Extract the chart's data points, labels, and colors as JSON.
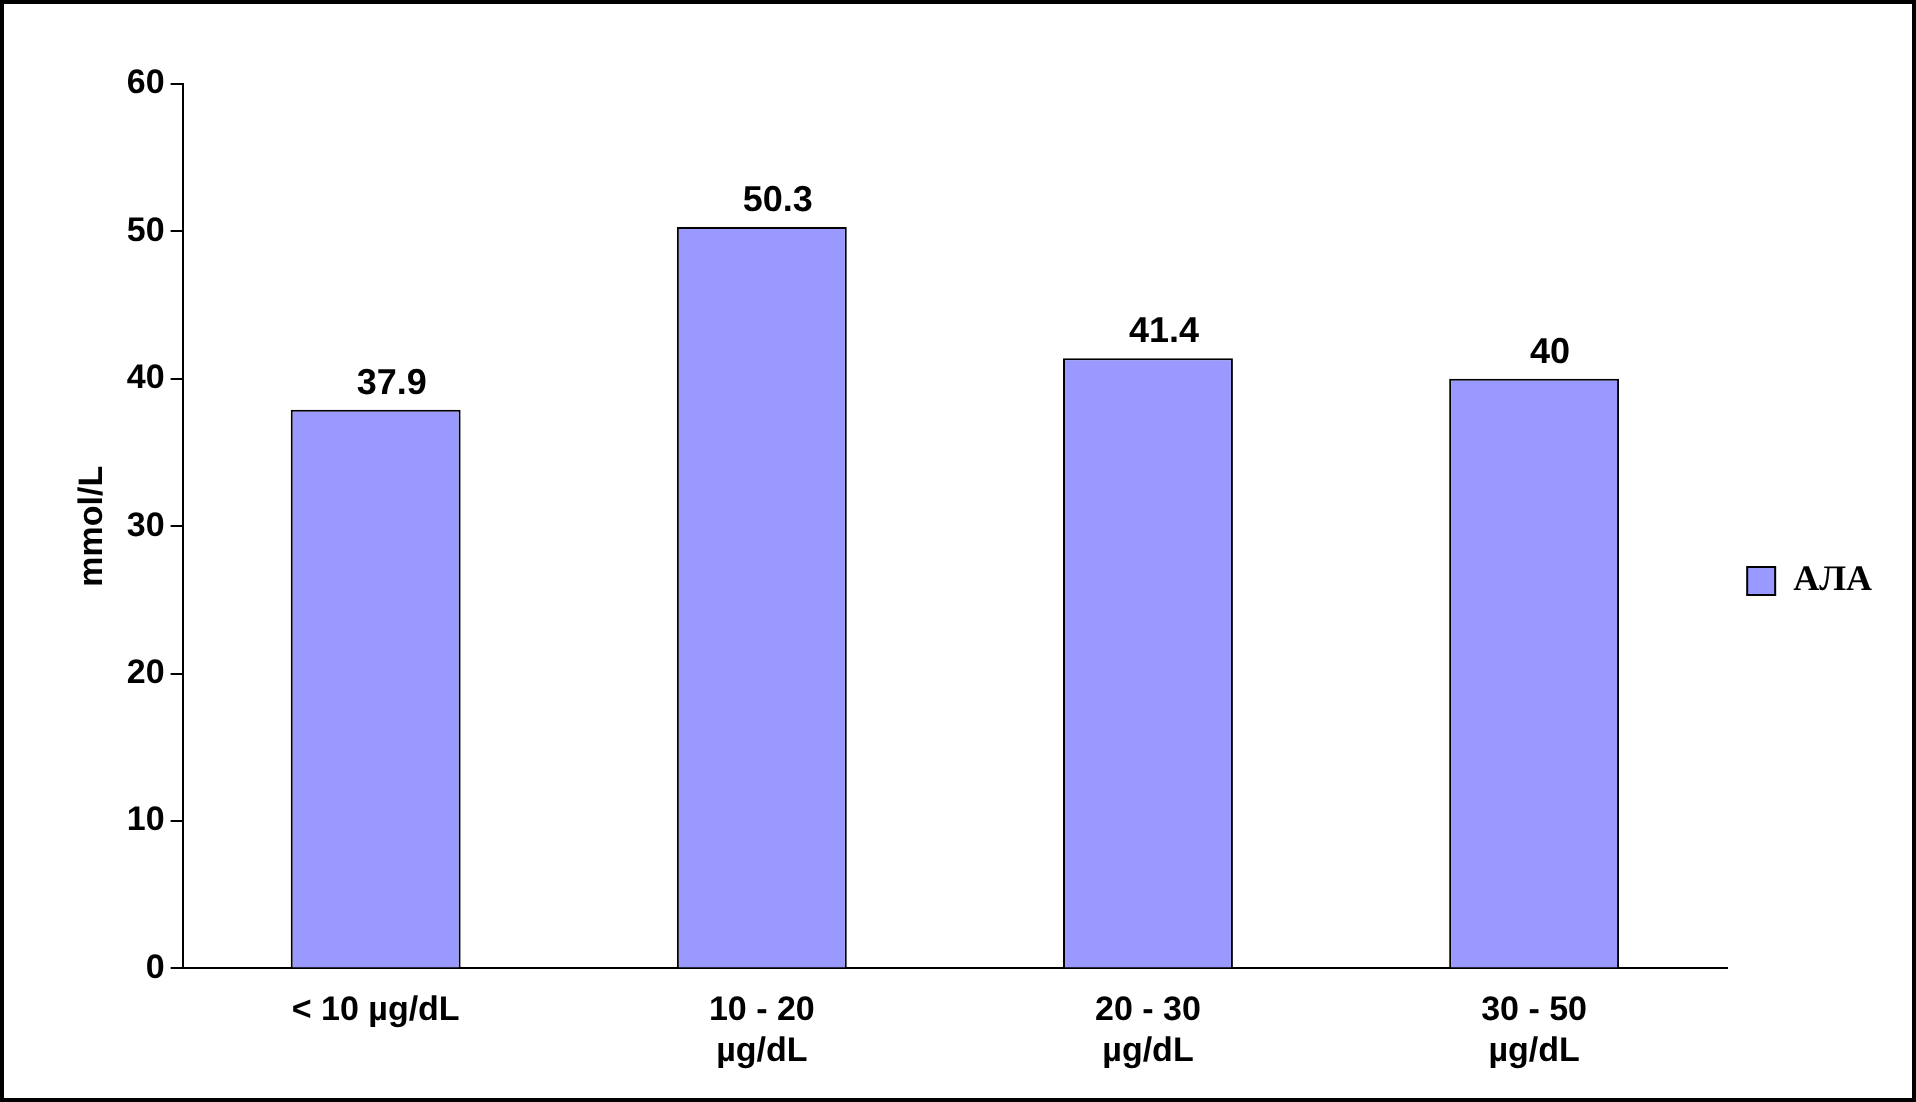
{
  "chart_data": {
    "type": "bar",
    "ylabel": "mmol/L",
    "categories": [
      "< 10 µg/dL",
      "10 - 20 µg/dL",
      "20 - 30 µg/dL",
      "30 - 50 µg/dL"
    ],
    "series": [
      {
        "name": "АЛА",
        "color": "#9999ff",
        "values": [
          37.9,
          50.3,
          41.4,
          40
        ]
      }
    ],
    "ylim": [
      0,
      60
    ],
    "yticks": [
      0,
      10,
      20,
      30,
      40,
      50,
      60
    ],
    "grid": false,
    "legend": "right",
    "data_labels": true
  }
}
